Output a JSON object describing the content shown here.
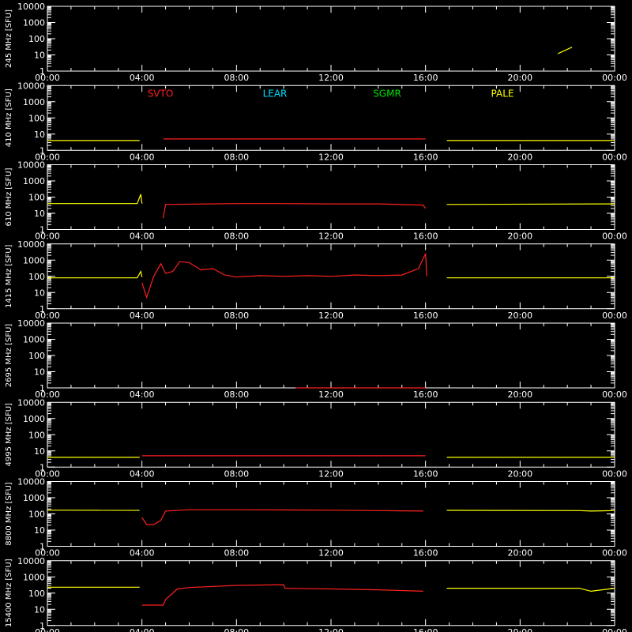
{
  "chart_data": {
    "type": "line",
    "x_ticks": [
      "00:00",
      "04:00",
      "08:00",
      "12:00",
      "16:00",
      "20:00",
      "00:00"
    ],
    "x_range_hours": [
      0,
      24
    ],
    "y_ticks": [
      "1",
      "10",
      "100",
      "1000",
      "10000"
    ],
    "y_scale": "log",
    "y_range": [
      1,
      10000
    ],
    "grid": false,
    "legend": {
      "placement": "top (second panel)",
      "entries": [
        {
          "name": "SVTO",
          "color": "#ff2020"
        },
        {
          "name": "LEAR",
          "color": "#00e0ff"
        },
        {
          "name": "SGMR",
          "color": "#00e000"
        },
        {
          "name": "PALE",
          "color": "#ffff00"
        }
      ]
    },
    "colors": {
      "background": "#000000",
      "axes": "#ffffff",
      "svto": "#ff2020",
      "pale": "#ffff00"
    },
    "panels": [
      {
        "ylabel": "245 MHz [SFU]",
        "series": [
          {
            "station": "PALE",
            "points": [
              [
                21.6,
                12
              ],
              [
                22.2,
                30
              ]
            ]
          }
        ]
      },
      {
        "ylabel": "410 MHz [SFU]",
        "series": [
          {
            "station": "PALE",
            "points": [
              [
                0,
                4
              ],
              [
                3.9,
                4
              ]
            ]
          },
          {
            "station": "SVTO",
            "points": [
              [
                4.9,
                5
              ],
              [
                16,
                5
              ]
            ]
          },
          {
            "station": "PALE",
            "points": [
              [
                16.9,
                4
              ],
              [
                24,
                4
              ]
            ]
          }
        ]
      },
      {
        "ylabel": "610 MHz [SFU]",
        "series": [
          {
            "station": "PALE",
            "points": [
              [
                0,
                40
              ],
              [
                3.8,
                40
              ],
              [
                3.95,
                150
              ],
              [
                4.0,
                40
              ]
            ]
          },
          {
            "station": "SVTO",
            "points": [
              [
                4.9,
                5
              ],
              [
                5.0,
                35
              ],
              [
                8,
                40
              ],
              [
                10,
                40
              ],
              [
                12,
                38
              ],
              [
                14,
                38
              ],
              [
                15.9,
                32
              ],
              [
                16,
                20
              ]
            ]
          },
          {
            "station": "PALE",
            "points": [
              [
                16.9,
                35
              ],
              [
                24,
                38
              ]
            ]
          }
        ]
      },
      {
        "ylabel": "1415 MHz [SFU]",
        "series": [
          {
            "station": "PALE",
            "points": [
              [
                0,
                80
              ],
              [
                3.8,
                80
              ],
              [
                3.95,
                200
              ],
              [
                4.0,
                90
              ]
            ]
          },
          {
            "station": "SVTO",
            "points": [
              [
                4.0,
                40
              ],
              [
                4.2,
                5
              ],
              [
                4.5,
                100
              ],
              [
                4.8,
                600
              ],
              [
                5.0,
                150
              ],
              [
                5.3,
                200
              ],
              [
                5.6,
                800
              ],
              [
                6.0,
                700
              ],
              [
                6.5,
                250
              ],
              [
                7.0,
                300
              ],
              [
                7.5,
                120
              ],
              [
                8.0,
                90
              ],
              [
                9.0,
                110
              ],
              [
                10.0,
                100
              ],
              [
                11.0,
                110
              ],
              [
                12.0,
                100
              ],
              [
                13.0,
                120
              ],
              [
                14.0,
                110
              ],
              [
                15.0,
                120
              ],
              [
                15.7,
                300
              ],
              [
                16.0,
                2500
              ],
              [
                16.05,
                100
              ]
            ]
          },
          {
            "station": "PALE",
            "points": [
              [
                16.9,
                80
              ],
              [
                24,
                80
              ]
            ]
          }
        ]
      },
      {
        "ylabel": "2695 MHz [SFU]",
        "series": [
          {
            "station": "SVTO",
            "points": [
              [
                10.5,
                1
              ],
              [
                16,
                1
              ]
            ]
          }
        ]
      },
      {
        "ylabel": "4995 MHz [SFU]",
        "series": [
          {
            "station": "PALE",
            "points": [
              [
                0,
                4
              ],
              [
                3.9,
                4
              ]
            ]
          },
          {
            "station": "SVTO",
            "points": [
              [
                4.0,
                5
              ],
              [
                16,
                5
              ]
            ]
          },
          {
            "station": "PALE",
            "points": [
              [
                16.9,
                4
              ],
              [
                24,
                4
              ]
            ]
          }
        ]
      },
      {
        "ylabel": "8800 MHz [SFU]",
        "series": [
          {
            "station": "PALE",
            "points": [
              [
                0,
                170
              ],
              [
                3.9,
                165
              ]
            ]
          },
          {
            "station": "SVTO",
            "points": [
              [
                4.0,
                60
              ],
              [
                4.2,
                22
              ],
              [
                4.5,
                22
              ],
              [
                4.8,
                40
              ],
              [
                5.0,
                150
              ],
              [
                6.0,
                180
              ],
              [
                8.0,
                180
              ],
              [
                10.0,
                175
              ],
              [
                12.0,
                170
              ],
              [
                14.0,
                160
              ],
              [
                15.9,
                150
              ]
            ]
          },
          {
            "station": "PALE",
            "points": [
              [
                16.9,
                165
              ],
              [
                22.5,
                160
              ],
              [
                23.0,
                150
              ],
              [
                24,
                160
              ]
            ]
          }
        ]
      },
      {
        "ylabel": "15400 MHz [SFU]",
        "series": [
          {
            "station": "PALE",
            "points": [
              [
                0,
                230
              ],
              [
                3.9,
                230
              ]
            ]
          },
          {
            "station": "SVTO",
            "points": [
              [
                4.0,
                18
              ],
              [
                4.9,
                18
              ],
              [
                5.0,
                40
              ],
              [
                5.5,
                180
              ],
              [
                6.0,
                220
              ],
              [
                8.0,
                300
              ],
              [
                10.0,
                330
              ],
              [
                10.05,
                200
              ],
              [
                12.0,
                180
              ],
              [
                14.0,
                160
              ],
              [
                15.9,
                130
              ]
            ]
          },
          {
            "station": "PALE",
            "points": [
              [
                16.9,
                200
              ],
              [
                22.5,
                200
              ],
              [
                23.0,
                130
              ],
              [
                24,
                200
              ]
            ]
          }
        ]
      }
    ]
  }
}
